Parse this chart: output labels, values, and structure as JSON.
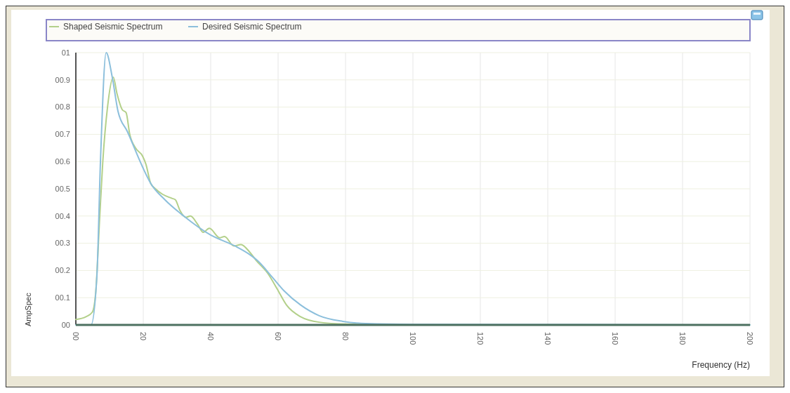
{
  "chart_data": {
    "type": "line",
    "xlabel": "Frequency (Hz)",
    "ylabel": "AmpSpec",
    "xlim": [
      0,
      200
    ],
    "ylim": [
      0,
      1
    ],
    "xticks": [
      {
        "value": 0,
        "label": "00"
      },
      20,
      40,
      60,
      80,
      100,
      120,
      140,
      160,
      180,
      200
    ],
    "yticks": [
      {
        "value": 0,
        "label": "00"
      },
      {
        "value": 0.1,
        "label": "00.1"
      },
      {
        "value": 0.2,
        "label": "00.2"
      },
      {
        "value": 0.3,
        "label": "00.3"
      },
      {
        "value": 0.4,
        "label": "00.4"
      },
      {
        "value": 0.5,
        "label": "00.5"
      },
      {
        "value": 0.6,
        "label": "00.6"
      },
      {
        "value": 0.7,
        "label": "00.7"
      },
      {
        "value": 0.8,
        "label": "00.8"
      },
      {
        "value": 0.9,
        "label": "00.9"
      },
      {
        "value": 1,
        "label": "01"
      }
    ],
    "grid": true,
    "legend": "top",
    "marker": "none",
    "line_style": "solid",
    "series": [
      {
        "name": "Shaped Seismic Spectrum",
        "color": "#b3d08a",
        "x": [
          0,
          3,
          4.9,
          5.9,
          7.1,
          8,
          9.4,
          11.1,
          12.2,
          13.8,
          14.9,
          16,
          17.7,
          19.8,
          20.8,
          22.2,
          23.6,
          25.7,
          28.5,
          29.5,
          30.9,
          32.6,
          34,
          36.1,
          37.8,
          39.6,
          42.7,
          44.1,
          46.9,
          49,
          51.4,
          53.5,
          56.9,
          59.7,
          62.5,
          66.7,
          72.2,
          80,
          100,
          150,
          200
        ],
        "values": [
          0.02,
          0.03,
          0.047,
          0.12,
          0.4,
          0.6,
          0.8,
          0.91,
          0.85,
          0.79,
          0.78,
          0.7,
          0.65,
          0.62,
          0.59,
          0.52,
          0.5,
          0.48,
          0.465,
          0.46,
          0.42,
          0.395,
          0.4,
          0.37,
          0.34,
          0.355,
          0.32,
          0.325,
          0.29,
          0.295,
          0.27,
          0.237,
          0.19,
          0.133,
          0.073,
          0.03,
          0.01,
          0.003,
          0,
          0,
          0
        ]
      },
      {
        "name": "Desired Seismic Spectrum",
        "color": "#8cbfdc",
        "x": [
          0,
          4.5,
          6.25,
          7.3,
          9,
          10.8,
          12.5,
          15.3,
          19.8,
          22.2,
          26.4,
          32,
          40,
          47.2,
          51.4,
          54,
          58.3,
          61.8,
          66.7,
          72.2,
          79.2,
          86,
          100,
          150,
          200
        ],
        "values": [
          0,
          0,
          0.18,
          0.6,
          1,
          0.91,
          0.785,
          0.71,
          0.58,
          0.52,
          0.46,
          0.4,
          0.33,
          0.29,
          0.26,
          0.235,
          0.175,
          0.125,
          0.073,
          0.034,
          0.013,
          0.005,
          0.002,
          0.001,
          0
        ]
      }
    ]
  }
}
